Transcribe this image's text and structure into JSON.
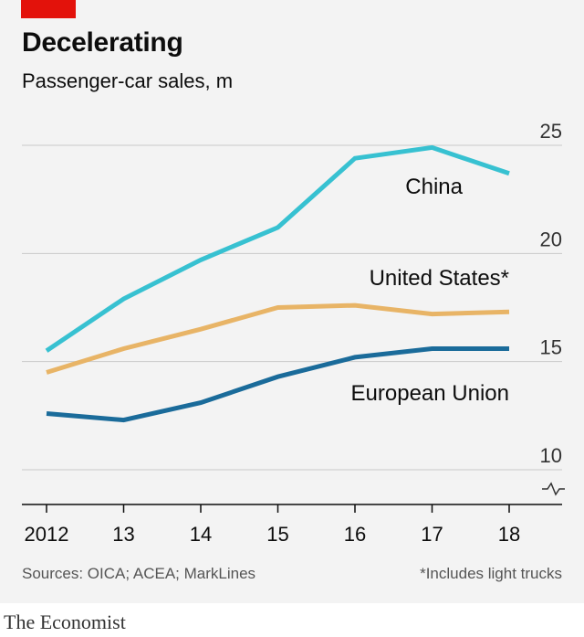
{
  "title": "Decelerating",
  "subtitle": "Passenger-car sales, m",
  "source": "Sources: OICA; ACEA; MarkLines",
  "footnote": "*Includes light trucks",
  "brand": "The Economist",
  "colors": {
    "accent_bar": "#e3120b",
    "china": "#37c1d1",
    "united_states": "#e8b466",
    "european_union": "#1a6b9a"
  },
  "chart_data": {
    "type": "line",
    "x": [
      2012,
      2013,
      2014,
      2015,
      2016,
      2017,
      2018
    ],
    "x_tick_labels": [
      "2012",
      "13",
      "14",
      "15",
      "16",
      "17",
      "18"
    ],
    "ylim": [
      10,
      25
    ],
    "y_ticks": [
      10,
      15,
      20,
      25
    ],
    "axis_break_below_10": true,
    "grid": "horizontal",
    "y_tick_side": "right",
    "series": [
      {
        "name": "China",
        "color_key": "china",
        "values": [
          15.5,
          17.9,
          19.7,
          21.2,
          24.4,
          24.9,
          23.7
        ]
      },
      {
        "name": "United States*",
        "color_key": "united_states",
        "values": [
          14.5,
          15.6,
          16.5,
          17.5,
          17.6,
          17.2,
          17.3
        ]
      },
      {
        "name": "European Union",
        "color_key": "european_union",
        "values": [
          12.6,
          12.3,
          13.1,
          14.3,
          15.2,
          15.6,
          15.6
        ]
      }
    ]
  }
}
